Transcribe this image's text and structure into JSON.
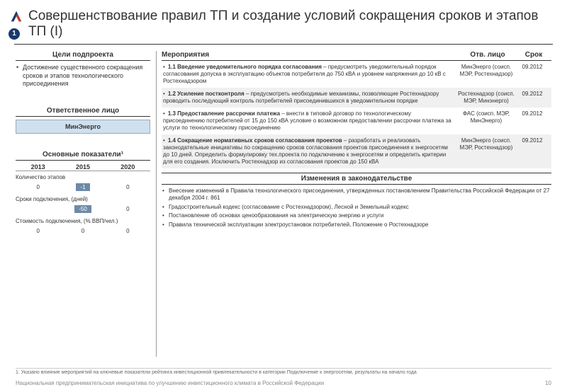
{
  "title": "Совершенствование правил ТП и создание условий сокращения сроков и этапов ТП (I)",
  "badge": "1",
  "logo_colors": {
    "stroke": "#1a3a6e",
    "accent": "#c0392b"
  },
  "left": {
    "goals_h": "Цели подпроекта",
    "goal": "Достижение существенного сокращения сроков и этапов технологического присоединения",
    "resp_h": "Ответственное лицо",
    "resp": "МинЭнерго",
    "kpi_h": "Основные показатели¹",
    "years": [
      "2013",
      "2015",
      "2020"
    ],
    "kpi_rows": [
      {
        "label": "Количество этапов",
        "vals": [
          "0",
          "-1",
          "0"
        ],
        "chip_idx": 1
      },
      {
        "label": "Сроки подключения, (дней)",
        "vals": [
          "",
          "-50",
          "0"
        ],
        "chip_idx": 1
      },
      {
        "label": "Стоимость подключения, (% ВВП/чел.)",
        "vals": [
          "0",
          "0",
          "0"
        ],
        "chip_idx": -1
      }
    ],
    "kpi_chip_bg": "#6e8aa8",
    "kpi_chip_color": "#ffffff"
  },
  "right": {
    "head": {
      "act": "Мероприятия",
      "resp": "Отв. лицо",
      "date": "Срок"
    },
    "rows": [
      {
        "title": "1.1 Введение уведомительного порядка согласования",
        "body": " – предусмотреть уведомительный порядок согласования допуска в эксплуатацию объектов потребителя до 750 кВА и уровнем напряжения до 10 кВ с Ростехнадзором",
        "resp": "МинЭнерго (соисп. МЭР, Ростехнадзор)",
        "date": "09.2012",
        "grey": false
      },
      {
        "title": "1.2 Усиление постконтроля",
        "body": " – предусмотреть необходимые механизмы, позволяющие Ростехнадзору проводить последующий контроль потребителей присоединившихся в уведомительном порядке",
        "resp": "Ростехнадзор (соисп. МЭР, Минэнерго)",
        "date": "09.2012",
        "grey": true
      },
      {
        "title": "1.3 Предоставление рассрочки платежа",
        "body": " – внести в типовой договор по технологическому присоединению потребителей от 15 до 150 кВА условие о возможном предоставлении рассрочки платежа за услуги по технологическому присоединению",
        "resp": "ФАС (соисп. МЭР, МинЭнерго)",
        "date": "09.2012",
        "grey": false
      },
      {
        "title": "1.4 Сокращение нормативных сроков согласования проектов",
        "body": " – разработать и реализовать законодательные инициативы по сокращению сроков согласования проектов присоединения к энергосетям до 10 дней. Определить формулировку тех.проекта по подключению к энергосетям и определить критерии для его создания. Исключить Ростехнадзор из согласования проектов до 150 кВА",
        "resp": "МинЭнерго (соисп. МЭР, Ростехнадзор)",
        "date": "09.2012",
        "grey": true
      }
    ],
    "changes_h": "Изменения в законодательстве",
    "changes": [
      "Внесение изменений в Правила технологического присоединения, утвержденных постановлением Правительства Российской Федерации от 27 декабря 2004 г. 861",
      "Градостроительный кодекс (согласование с Ростехнадзором), Лесной и Земельный кодекс",
      "Постановление об основах ценообразования на электрическую энергию и услуги",
      "Правила технической эксплуатации электроустановок потребителей, Положение о Ростехнадзоре"
    ]
  },
  "footnote": "1. Указано влияние мероприятий на ключевые показатели рейтинга инвестиционной привлекательности в категории Подключение к энергосетям, результаты на начало года",
  "footer": "Национальная предпринимательская инициатива по улучшению инвестиционного климата в Российской Федерации",
  "page_num": "10",
  "colors": {
    "accent": "#1a3a6e",
    "resp_box_bg": "#cfe0ee",
    "row_grey": "#f0f0f0"
  }
}
